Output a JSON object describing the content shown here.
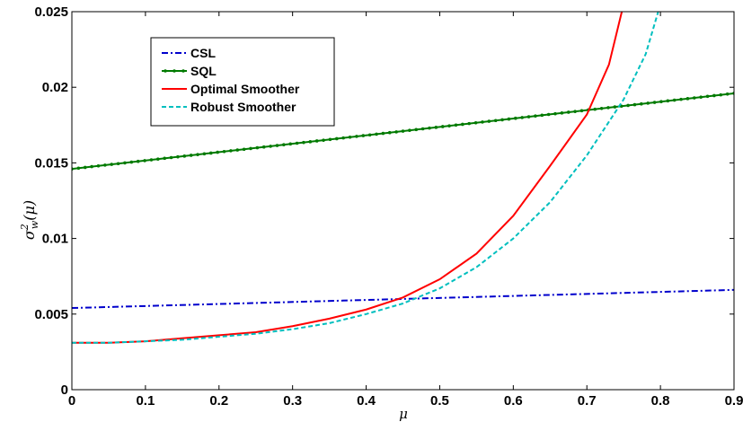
{
  "chart_data": {
    "type": "line",
    "xlabel": "μ",
    "ylabel_main": "σ",
    "ylabel_sup": "2",
    "ylabel_sub": "w",
    "ylabel_arg": "(μ)",
    "xlim": [
      0,
      0.9
    ],
    "ylim": [
      0,
      0.025
    ],
    "xticks": [
      "0",
      "0.1",
      "0.2",
      "0.3",
      "0.4",
      "0.5",
      "0.6",
      "0.7",
      "0.8",
      "0.9"
    ],
    "yticks": [
      "0",
      "0.005",
      "0.01",
      "0.015",
      "0.02",
      "0.025"
    ],
    "grid": false,
    "legend_position": "top-left",
    "series": [
      {
        "name": "CSL",
        "color": "#0000cc",
        "style": "dashdot",
        "marker": "none",
        "points": [
          [
            0,
            0.0054
          ],
          [
            0.9,
            0.0066
          ]
        ]
      },
      {
        "name": "SQL",
        "color": "#007a00",
        "style": "solid",
        "marker": "dot",
        "points": [
          [
            0,
            0.0146
          ],
          [
            0.9,
            0.0196
          ]
        ]
      },
      {
        "name": "Optimal Smoother",
        "color": "#ff0000",
        "style": "solid",
        "marker": "none",
        "points": [
          [
            0,
            0.0031
          ],
          [
            0.05,
            0.0031
          ],
          [
            0.1,
            0.0032
          ],
          [
            0.15,
            0.0034
          ],
          [
            0.2,
            0.0036
          ],
          [
            0.25,
            0.0038
          ],
          [
            0.3,
            0.0042
          ],
          [
            0.35,
            0.0047
          ],
          [
            0.4,
            0.0053
          ],
          [
            0.45,
            0.0061
          ],
          [
            0.5,
            0.0073
          ],
          [
            0.55,
            0.009
          ],
          [
            0.6,
            0.0115
          ],
          [
            0.65,
            0.0148
          ],
          [
            0.7,
            0.0182
          ],
          [
            0.73,
            0.0215
          ],
          [
            0.75,
            0.0255
          ]
        ]
      },
      {
        "name": "Robust Smoother",
        "color": "#00bfbf",
        "style": "dashed",
        "marker": "none",
        "points": [
          [
            0,
            0.0031
          ],
          [
            0.05,
            0.0031
          ],
          [
            0.1,
            0.0032
          ],
          [
            0.15,
            0.0033
          ],
          [
            0.2,
            0.0035
          ],
          [
            0.25,
            0.0037
          ],
          [
            0.3,
            0.004
          ],
          [
            0.35,
            0.0044
          ],
          [
            0.4,
            0.005
          ],
          [
            0.45,
            0.0057
          ],
          [
            0.5,
            0.0067
          ],
          [
            0.55,
            0.0081
          ],
          [
            0.6,
            0.01
          ],
          [
            0.65,
            0.0124
          ],
          [
            0.7,
            0.0155
          ],
          [
            0.75,
            0.0192
          ],
          [
            0.78,
            0.0222
          ],
          [
            0.8,
            0.0255
          ]
        ]
      }
    ]
  }
}
